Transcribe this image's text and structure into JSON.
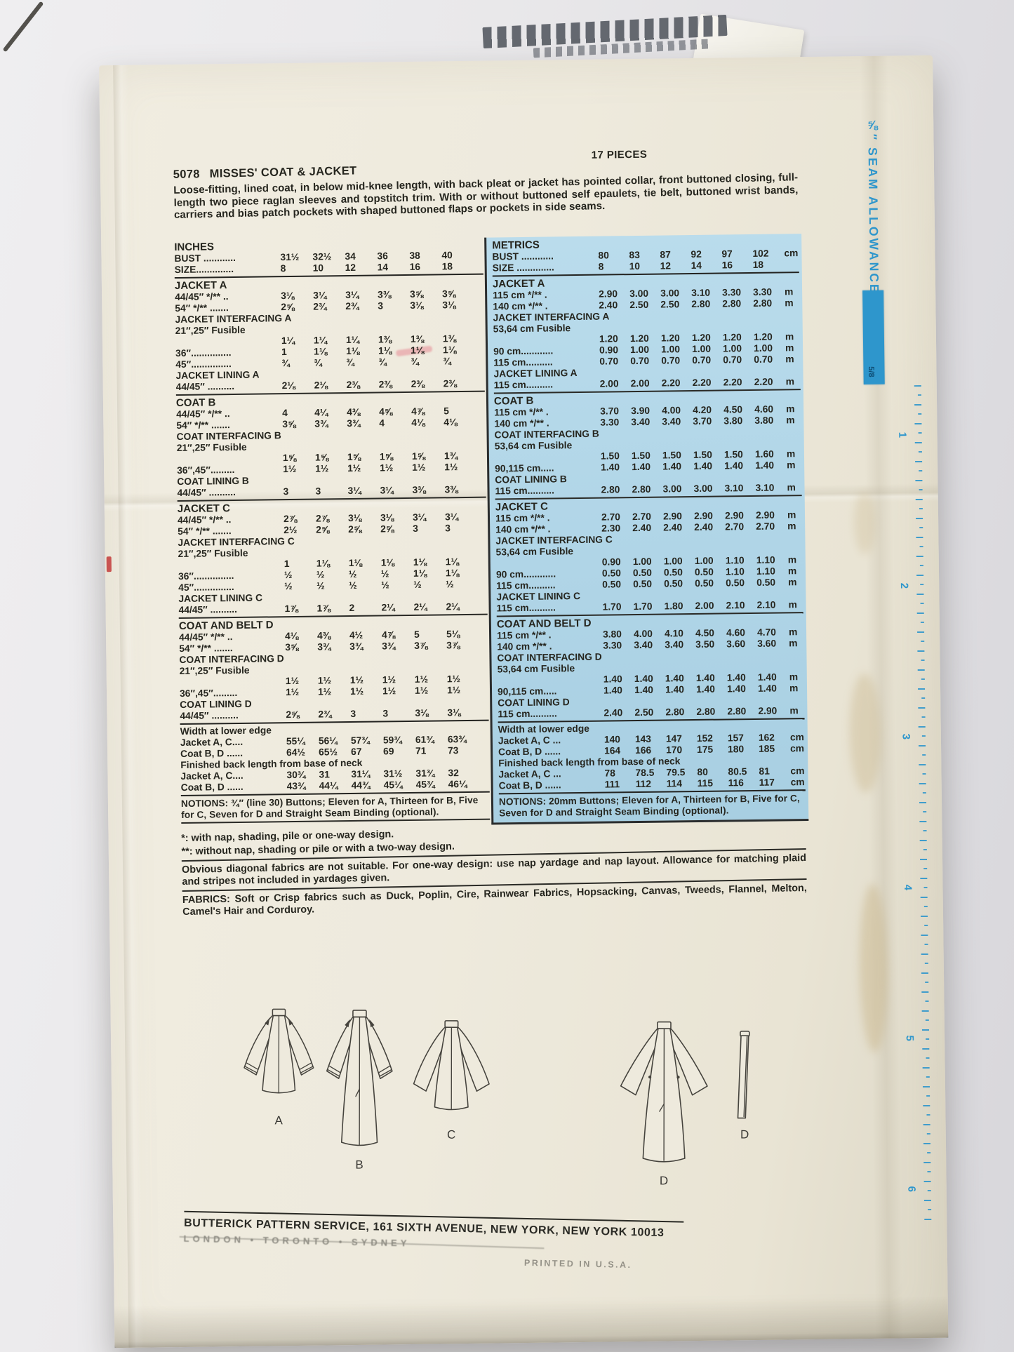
{
  "colors": {
    "accent_blue": "#2e96cc",
    "metrics_panel": "#b0d5e7",
    "paper": "#eeeadd",
    "ink": "#26261f"
  },
  "envelope": {
    "pieces_label": "17 PIECES",
    "number": "5078",
    "title": "MISSES' COAT & JACKET",
    "description": "Loose-fitting, lined coat, in below mid-knee length, with back pleat or jacket has pointed collar, front buttoned closing, full-length two piece raglan sleeves and topstitch trim. With or without buttoned self epaulets, tie belt, buttoned wrist bands, carriers and bias patch pockets with shaped buttoned flaps or pockets in side seams."
  },
  "inches_table": {
    "header": {
      "title": "INCHES",
      "bust_label": "BUST ............",
      "bust": [
        "31½",
        "32½",
        "34",
        "36",
        "38",
        "40"
      ],
      "size_label": "SIZE..............",
      "size": [
        "8",
        "10",
        "12",
        "14",
        "16",
        "18"
      ]
    },
    "sections": [
      {
        "rows": [
          {
            "t": "h",
            "label": "JACKET A"
          },
          {
            "t": "d",
            "label": "44/45″ */** ..",
            "v": [
              "3⅛",
              "3¼",
              "3¼",
              "3⅜",
              "3⅝",
              "3⅝"
            ]
          },
          {
            "t": "d",
            "label": "54″ */** .......",
            "v": [
              "2⅝",
              "2¾",
              "2¾",
              "3",
              "3⅛",
              "3⅛"
            ]
          },
          {
            "t": "s",
            "label": "JACKET INTERFACING A"
          },
          {
            "t": "s",
            "label": "21″,25″ Fusible"
          },
          {
            "t": "v",
            "label": "",
            "v": [
              "1¼",
              "1¼",
              "1¼",
              "1⅜",
              "1⅜",
              "1⅜"
            ]
          },
          {
            "t": "d",
            "label": "36″...............",
            "v": [
              "1",
              "1⅛",
              "1⅛",
              "1⅛",
              "1⅛",
              "1⅛"
            ]
          },
          {
            "t": "d",
            "label": "45″...............",
            "v": [
              "¾",
              "¾",
              "¾",
              "¾",
              "¾",
              "¾"
            ]
          },
          {
            "t": "s",
            "label": "JACKET LINING A"
          },
          {
            "t": "d",
            "label": "44/45″ ..........",
            "v": [
              "2⅛",
              "2⅛",
              "2⅜",
              "2⅜",
              "2⅜",
              "2⅜"
            ]
          }
        ]
      },
      {
        "rows": [
          {
            "t": "h",
            "label": "COAT B"
          },
          {
            "t": "d",
            "label": "44/45″ */** ..",
            "v": [
              "4",
              "4¼",
              "4⅜",
              "4⅝",
              "4⅞",
              "5"
            ]
          },
          {
            "t": "d",
            "label": "54″ */** .......",
            "v": [
              "3⅝",
              "3¾",
              "3¾",
              "4",
              "4⅛",
              "4⅛"
            ]
          },
          {
            "t": "s",
            "label": "COAT INTERFACING B"
          },
          {
            "t": "s",
            "label": "21″,25″ Fusible"
          },
          {
            "t": "v",
            "label": "",
            "v": [
              "1⅝",
              "1⅝",
              "1⅝",
              "1⅝",
              "1⅝",
              "1¾"
            ]
          },
          {
            "t": "d",
            "label": "36″,45″.........",
            "v": [
              "1½",
              "1½",
              "1½",
              "1½",
              "1½",
              "1½"
            ]
          },
          {
            "t": "s",
            "label": "COAT LINING B"
          },
          {
            "t": "d",
            "label": "44/45″ ..........",
            "v": [
              "3",
              "3",
              "3¼",
              "3¼",
              "3⅜",
              "3⅜"
            ]
          }
        ]
      },
      {
        "rows": [
          {
            "t": "h",
            "label": "JACKET C"
          },
          {
            "t": "d",
            "label": "44/45″ */** ..",
            "v": [
              "2⅞",
              "2⅞",
              "3⅛",
              "3⅛",
              "3¼",
              "3¼"
            ]
          },
          {
            "t": "d",
            "label": "54″ */** .......",
            "v": [
              "2½",
              "2⅝",
              "2⅝",
              "2⅝",
              "3",
              "3"
            ]
          },
          {
            "t": "s",
            "label": "JACKET INTERFACING C"
          },
          {
            "t": "s",
            "label": "21″,25″ Fusible"
          },
          {
            "t": "v",
            "label": "",
            "v": [
              "1",
              "1⅛",
              "1⅛",
              "1⅛",
              "1⅛",
              "1⅛"
            ]
          },
          {
            "t": "d",
            "label": "36″...............",
            "v": [
              "½",
              "½",
              "½",
              "½",
              "1⅛",
              "1⅛"
            ]
          },
          {
            "t": "d",
            "label": "45″...............",
            "v": [
              "½",
              "½",
              "½",
              "½",
              "½",
              "½"
            ]
          },
          {
            "t": "s",
            "label": "JACKET LINING C"
          },
          {
            "t": "d",
            "label": "44/45″ ..........",
            "v": [
              "1⅞",
              "1⅞",
              "2",
              "2¼",
              "2¼",
              "2¼"
            ]
          }
        ]
      },
      {
        "rows": [
          {
            "t": "h",
            "label": "COAT AND BELT D"
          },
          {
            "t": "d",
            "label": "44/45″ */** ..",
            "v": [
              "4⅛",
              "4⅜",
              "4½",
              "4⅞",
              "5",
              "5⅛"
            ]
          },
          {
            "t": "d",
            "label": "54″ */** .......",
            "v": [
              "3⅝",
              "3¾",
              "3¾",
              "3¾",
              "3⅞",
              "3⅞"
            ]
          },
          {
            "t": "s",
            "label": "COAT INTERFACING D"
          },
          {
            "t": "s",
            "label": "21″,25″ Fusible"
          },
          {
            "t": "v",
            "label": "",
            "v": [
              "1½",
              "1½",
              "1½",
              "1½",
              "1½",
              "1½"
            ]
          },
          {
            "t": "d",
            "label": "36″,45″.........",
            "v": [
              "1½",
              "1½",
              "1½",
              "1½",
              "1½",
              "1½"
            ]
          },
          {
            "t": "s",
            "label": "COAT LINING D"
          },
          {
            "t": "d",
            "label": "44/45″ ..........",
            "v": [
              "2⅝",
              "2¾",
              "3",
              "3",
              "3⅛",
              "3⅛"
            ]
          }
        ]
      },
      {
        "rows": [
          {
            "t": "s",
            "label": "Width at lower edge"
          },
          {
            "t": "d",
            "label": "Jacket A, C....",
            "v": [
              "55¼",
              "56¼",
              "57¾",
              "59¾",
              "61¾",
              "63¾"
            ]
          },
          {
            "t": "d",
            "label": "Coat B, D ......",
            "v": [
              "64½",
              "65½",
              "67",
              "69",
              "71",
              "73"
            ]
          },
          {
            "t": "s",
            "label": "Finished back length from base of neck"
          },
          {
            "t": "d",
            "label": "Jacket A, C....",
            "v": [
              "30¾",
              "31",
              "31¼",
              "31½",
              "31¾",
              "32"
            ]
          },
          {
            "t": "d",
            "label": "Coat B, D ......",
            "v": [
              "43¾",
              "44¼",
              "44¾",
              "45¼",
              "45¾",
              "46¼"
            ]
          }
        ]
      }
    ],
    "notions": "NOTIONS: ¾″ (line 30) Buttons; Eleven for A, Thirteen for B, Five for C, Seven for D and Straight Seam Binding (optional)."
  },
  "metrics_table": {
    "header": {
      "title": "METRICS",
      "bust_label": "BUST ............",
      "bust": [
        "80",
        "83",
        "87",
        "92",
        "97",
        "102"
      ],
      "bust_unit": "cm",
      "size_label": "SIZE ..............",
      "size": [
        "8",
        "10",
        "12",
        "14",
        "16",
        "18"
      ]
    },
    "sections": [
      {
        "rows": [
          {
            "t": "h",
            "label": "JACKET A"
          },
          {
            "t": "d",
            "label": "115 cm */** .",
            "v": [
              "2.90",
              "3.00",
              "3.00",
              "3.10",
              "3.30",
              "3.30"
            ],
            "u": "m"
          },
          {
            "t": "d",
            "label": "140 cm */** .",
            "v": [
              "2.40",
              "2.50",
              "2.50",
              "2.80",
              "2.80",
              "2.80"
            ],
            "u": "m"
          },
          {
            "t": "s",
            "label": "JACKET INTERFACING A"
          },
          {
            "t": "s",
            "label": "53,64 cm Fusible"
          },
          {
            "t": "v",
            "label": "",
            "v": [
              "1.20",
              "1.20",
              "1.20",
              "1.20",
              "1.20",
              "1.20"
            ],
            "u": "m"
          },
          {
            "t": "d",
            "label": "90 cm............",
            "v": [
              "0.90",
              "1.00",
              "1.00",
              "1.00",
              "1.00",
              "1.00"
            ],
            "u": "m"
          },
          {
            "t": "d",
            "label": "115 cm..........",
            "v": [
              "0.70",
              "0.70",
              "0.70",
              "0.70",
              "0.70",
              "0.70"
            ],
            "u": "m"
          },
          {
            "t": "s",
            "label": "JACKET LINING A"
          },
          {
            "t": "d",
            "label": "115 cm..........",
            "v": [
              "2.00",
              "2.00",
              "2.20",
              "2.20",
              "2.20",
              "2.20"
            ],
            "u": "m"
          }
        ]
      },
      {
        "rows": [
          {
            "t": "h",
            "label": "COAT B"
          },
          {
            "t": "d",
            "label": "115 cm */** .",
            "v": [
              "3.70",
              "3.90",
              "4.00",
              "4.20",
              "4.50",
              "4.60"
            ],
            "u": "m"
          },
          {
            "t": "d",
            "label": "140 cm */** .",
            "v": [
              "3.30",
              "3.40",
              "3.40",
              "3.70",
              "3.80",
              "3.80"
            ],
            "u": "m"
          },
          {
            "t": "s",
            "label": "COAT INTERFACING B"
          },
          {
            "t": "s",
            "label": "53,64 cm Fusible"
          },
          {
            "t": "v",
            "label": "",
            "v": [
              "1.50",
              "1.50",
              "1.50",
              "1.50",
              "1.50",
              "1.60"
            ],
            "u": "m"
          },
          {
            "t": "d",
            "label": "90,115 cm.....",
            "v": [
              "1.40",
              "1.40",
              "1.40",
              "1.40",
              "1.40",
              "1.40"
            ],
            "u": "m"
          },
          {
            "t": "s",
            "label": "COAT LINING B"
          },
          {
            "t": "d",
            "label": "115 cm..........",
            "v": [
              "2.80",
              "2.80",
              "3.00",
              "3.00",
              "3.10",
              "3.10"
            ],
            "u": "m"
          }
        ]
      },
      {
        "rows": [
          {
            "t": "h",
            "label": "JACKET C"
          },
          {
            "t": "d",
            "label": "115 cm */** .",
            "v": [
              "2.70",
              "2.70",
              "2.90",
              "2.90",
              "2.90",
              "2.90"
            ],
            "u": "m"
          },
          {
            "t": "d",
            "label": "140 cm */** .",
            "v": [
              "2.30",
              "2.40",
              "2.40",
              "2.40",
              "2.70",
              "2.70"
            ],
            "u": "m"
          },
          {
            "t": "s",
            "label": "JACKET INTERFACING C"
          },
          {
            "t": "s",
            "label": "53,64 cm Fusible"
          },
          {
            "t": "v",
            "label": "",
            "v": [
              "0.90",
              "1.00",
              "1.00",
              "1.00",
              "1.10",
              "1.10"
            ],
            "u": "m"
          },
          {
            "t": "d",
            "label": "90 cm............",
            "v": [
              "0.50",
              "0.50",
              "0.50",
              "0.50",
              "1.10",
              "1.10"
            ],
            "u": "m"
          },
          {
            "t": "d",
            "label": "115 cm..........",
            "v": [
              "0.50",
              "0.50",
              "0.50",
              "0.50",
              "0.50",
              "0.50"
            ],
            "u": "m"
          },
          {
            "t": "s",
            "label": "JACKET LINING C"
          },
          {
            "t": "d",
            "label": "115 cm..........",
            "v": [
              "1.70",
              "1.70",
              "1.80",
              "2.00",
              "2.10",
              "2.10"
            ],
            "u": "m"
          }
        ]
      },
      {
        "rows": [
          {
            "t": "h",
            "label": "COAT AND BELT D"
          },
          {
            "t": "d",
            "label": "115 cm */** .",
            "v": [
              "3.80",
              "4.00",
              "4.10",
              "4.50",
              "4.60",
              "4.70"
            ],
            "u": "m"
          },
          {
            "t": "d",
            "label": "140 cm */** .",
            "v": [
              "3.30",
              "3.40",
              "3.40",
              "3.50",
              "3.60",
              "3.60"
            ],
            "u": "m"
          },
          {
            "t": "s",
            "label": "COAT INTERFACING D"
          },
          {
            "t": "s",
            "label": "53,64 cm Fusible"
          },
          {
            "t": "v",
            "label": "",
            "v": [
              "1.40",
              "1.40",
              "1.40",
              "1.40",
              "1.40",
              "1.40"
            ],
            "u": "m"
          },
          {
            "t": "d",
            "label": "90,115 cm.....",
            "v": [
              "1.40",
              "1.40",
              "1.40",
              "1.40",
              "1.40",
              "1.40"
            ],
            "u": "m"
          },
          {
            "t": "s",
            "label": "COAT LINING D"
          },
          {
            "t": "d",
            "label": "115 cm..........",
            "v": [
              "2.40",
              "2.50",
              "2.80",
              "2.80",
              "2.80",
              "2.90"
            ],
            "u": "m"
          }
        ]
      },
      {
        "rows": [
          {
            "t": "s",
            "label": "Width at lower edge"
          },
          {
            "t": "d",
            "label": "Jacket A, C ...",
            "v": [
              "140",
              "143",
              "147",
              "152",
              "157",
              "162"
            ],
            "u": "cm"
          },
          {
            "t": "d",
            "label": "Coat B, D ......",
            "v": [
              "164",
              "166",
              "170",
              "175",
              "180",
              "185"
            ],
            "u": "cm"
          },
          {
            "t": "s",
            "label": "Finished back length from base of neck"
          },
          {
            "t": "d",
            "label": "Jacket A, C ...",
            "v": [
              "78",
              "78.5",
              "79.5",
              "80",
              "80.5",
              "81"
            ],
            "u": "cm"
          },
          {
            "t": "d",
            "label": "Coat B, D ......",
            "v": [
              "111",
              "112",
              "114",
              "115",
              "116",
              "117"
            ],
            "u": "cm"
          }
        ]
      }
    ],
    "notions": "NOTIONS: 20mm Buttons; Eleven for A, Thirteen for B, Five for C, Seven for D and Straight Seam Binding (optional)."
  },
  "notes": {
    "footnote_star": "*: with nap, shading, pile or one-way design.",
    "footnote_dstar": "**: without nap, shading or pile or with a two-way design.",
    "diagonal": "Obvious diagonal fabrics are not suitable. For one-way design: use nap yardage and nap layout. Allowance for matching plaid and stripes not included in yardages given.",
    "fabrics": "FABRICS: Soft or Crisp fabrics such as Duck, Poplin, Cire, Rainwear Fabrics, Hopsacking, Canvas, Tweeds, Flannel, Melton, Camel's Hair and Corduroy."
  },
  "illustrations": {
    "views": [
      "A",
      "B",
      "C",
      "D",
      "D"
    ]
  },
  "footer": {
    "address": "BUTTERICK PATTERN SERVICE, 161 SIXTH AVENUE, NEW YORK, NEW YORK 10013",
    "cities": "LONDON  •  TORONTO  •  SYDNEY",
    "printed": "PRINTED IN U.S.A."
  },
  "seam": {
    "label": "⅝″ SEAM ALLOWANCE",
    "gauge_fraction": "5/8",
    "ruler_numbers": [
      "1",
      "2",
      "3",
      "4",
      "5",
      "6"
    ]
  }
}
